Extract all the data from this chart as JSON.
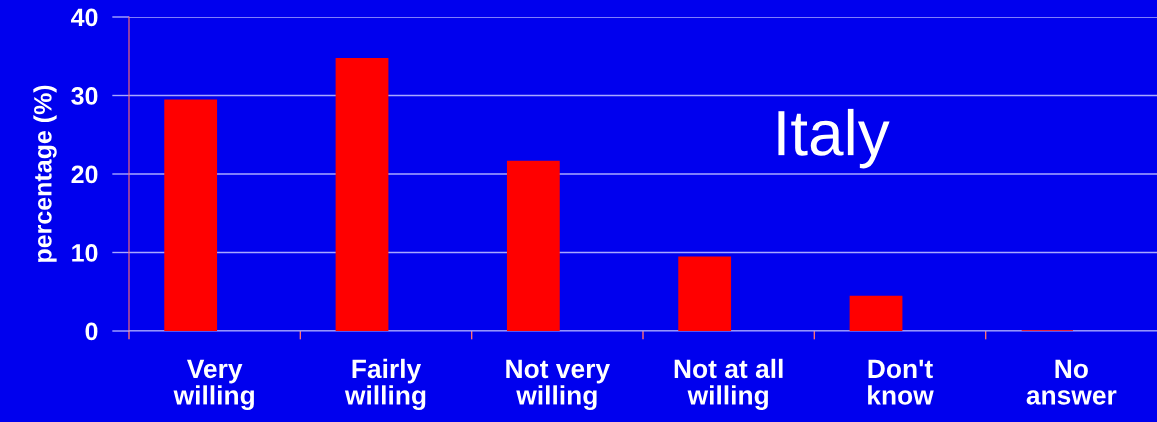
{
  "chart_data": {
    "type": "bar",
    "ylabel": "percentage (%)",
    "annotations": [
      "Italy"
    ],
    "categories": [
      "Very willing",
      "Fairly willing",
      "Not very willing",
      "Not at all willing",
      "Don't know",
      "No answer"
    ],
    "values": [
      29.4,
      34.7,
      21.6,
      9.4,
      4.4,
      0
    ],
    "color": "#ff0000",
    "ylim": [
      0,
      40
    ],
    "yticks": [
      0,
      10,
      20,
      30,
      40
    ],
    "grid": "y"
  }
}
